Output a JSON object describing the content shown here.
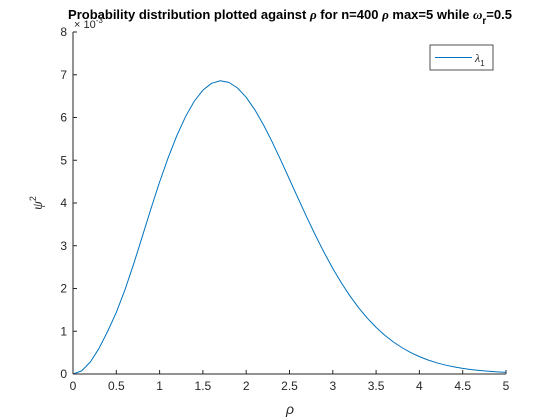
{
  "chart_data": {
    "type": "line",
    "title_parts": {
      "prefix": "Probability distribution plotted against ",
      "rho": "ρ",
      "mid": " for n=400 ",
      "rho2": "ρ",
      "max": " max=5 while ",
      "omega": "ω",
      "omega_sub": "r",
      "suffix": "=0.5"
    },
    "xlabel": "ρ",
    "ylabel_base": "ψ",
    "ylabel_sup": "2",
    "y_exponent_prefix": "× 10",
    "y_exponent": "-3",
    "xlim": [
      0,
      5
    ],
    "ylim": [
      0,
      0.008
    ],
    "x_ticks": [
      0,
      0.5,
      1,
      1.5,
      2,
      2.5,
      3,
      3.5,
      4,
      4.5,
      5
    ],
    "x_tick_labels": [
      "0",
      "0.5",
      "1",
      "1.5",
      "2",
      "2.5",
      "3",
      "3.5",
      "4",
      "4.5",
      "5"
    ],
    "y_ticks": [
      0,
      0.001,
      0.002,
      0.003,
      0.004,
      0.005,
      0.006,
      0.007,
      0.008
    ],
    "y_tick_labels": [
      "0",
      "1",
      "2",
      "3",
      "4",
      "5",
      "6",
      "7",
      "8"
    ],
    "legend_position": "top-right",
    "grid": false,
    "series": [
      {
        "name_base": "λ",
        "name_sub": "1",
        "color": "#0072BD",
        "x": [
          0,
          0.1,
          0.2,
          0.3,
          0.4,
          0.5,
          0.6,
          0.7,
          0.8,
          0.9,
          1.0,
          1.1,
          1.2,
          1.3,
          1.4,
          1.5,
          1.6,
          1.7,
          1.8,
          1.9,
          2.0,
          2.1,
          2.2,
          2.3,
          2.4,
          2.5,
          2.6,
          2.7,
          2.8,
          2.9,
          3.0,
          3.1,
          3.2,
          3.3,
          3.4,
          3.5,
          3.6,
          3.7,
          3.8,
          3.9,
          4.0,
          4.1,
          4.2,
          4.3,
          4.4,
          4.5,
          4.6,
          4.7,
          4.8,
          4.9,
          5.0
        ],
        "y": [
          0,
          7.3e-05,
          0.000281,
          0.000598,
          0.000997,
          0.001441,
          0.00197,
          0.002571,
          0.003215,
          0.003866,
          0.004491,
          0.005066,
          0.00558,
          0.006022,
          0.00638,
          0.00664,
          0.0068,
          0.00686,
          0.006822,
          0.00669,
          0.006472,
          0.00618,
          0.005827,
          0.005428,
          0.004998,
          0.004553,
          0.004106,
          0.003666,
          0.003242,
          0.002841,
          0.002469,
          0.002128,
          0.00182,
          0.001545,
          0.001303,
          0.00109,
          0.000906,
          0.000748,
          0.000614,
          0.000501,
          0.000406,
          0.000327,
          0.000262,
          0.000209,
          0.000166,
          0.000131,
          0.000103,
          8.1e-05,
          6.3e-05,
          4.9e-05,
          3.8e-05
        ]
      }
    ]
  }
}
